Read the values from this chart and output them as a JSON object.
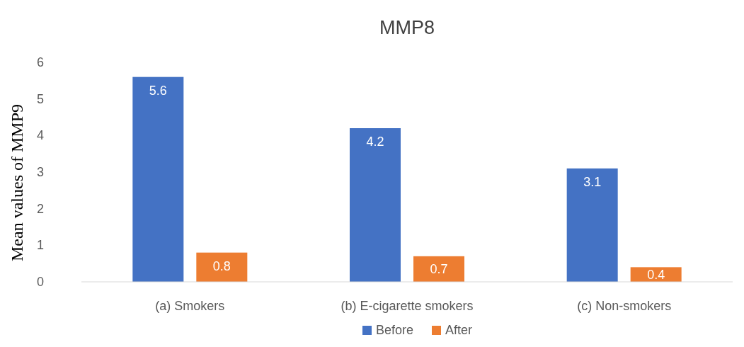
{
  "chart_data": {
    "type": "bar",
    "title": "MMP8",
    "ylabel": "Mean values of MMP9",
    "categories": [
      "(a) Smokers",
      "(b) E-cigarette smokers",
      "(c) Non-smokers"
    ],
    "series": [
      {
        "name": "Before",
        "color": "#4472c4",
        "values": [
          5.6,
          4.2,
          3.1
        ]
      },
      {
        "name": "After",
        "color": "#ed7d31",
        "values": [
          0.8,
          0.7,
          0.4
        ]
      }
    ],
    "ylim": [
      0,
      6
    ],
    "yticks": [
      0,
      1,
      2,
      3,
      4,
      5,
      6
    ],
    "grid": false,
    "legend": "bottom",
    "data_labels": true
  }
}
